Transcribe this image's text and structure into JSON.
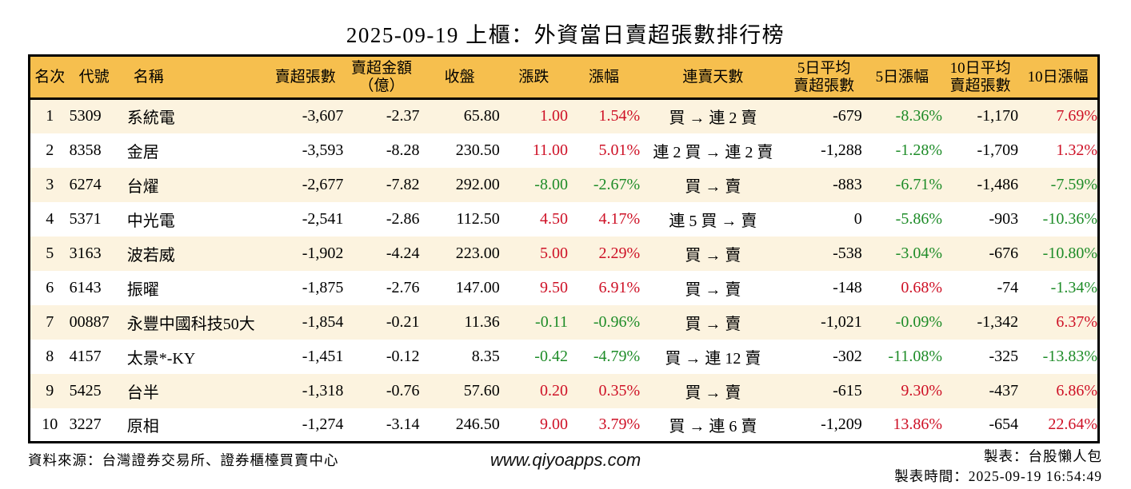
{
  "title": "2025-09-19 上櫃：外資當日賣超張數排行榜",
  "colors": {
    "up_red": "#CE1126",
    "down_green": "#1E8C28",
    "header_bg": "#F6BF4E",
    "row_stripe": "#FCF3DF",
    "border": "#000000"
  },
  "chart_data": {
    "type": "table",
    "title": "2025-09-19 上櫃：外資當日賣超張數排行榜",
    "columns": [
      {
        "key": "rank",
        "label": "名次"
      },
      {
        "key": "code",
        "label": "代號"
      },
      {
        "key": "name",
        "label": "名稱"
      },
      {
        "key": "sell_volume",
        "label": "賣超張數"
      },
      {
        "key": "sell_amount",
        "label": "賣超金額\n（億）"
      },
      {
        "key": "close",
        "label": "收盤"
      },
      {
        "key": "change",
        "label": "漲跌"
      },
      {
        "key": "change_pct",
        "label": "漲幅"
      },
      {
        "key": "streak",
        "label": "連賣天數"
      },
      {
        "key": "avg5_volume",
        "label": "5日平均\n賣超張數"
      },
      {
        "key": "pct5",
        "label": "5日漲幅"
      },
      {
        "key": "avg10_volume",
        "label": "10日平均\n賣超張數"
      },
      {
        "key": "pct10",
        "label": "10日漲幅"
      }
    ],
    "rows": [
      {
        "rank": "1",
        "code": "5309",
        "name": "系統電",
        "sell_volume": "-3,607",
        "sell_amount": "-2.37",
        "close": "65.80",
        "change": "1.00",
        "change_pct": "1.54%",
        "streak": "買 → 連 2 賣",
        "avg5_volume": "-679",
        "pct5": "-8.36%",
        "avg10_volume": "-1,170",
        "pct10": "7.69%"
      },
      {
        "rank": "2",
        "code": "8358",
        "name": "金居",
        "sell_volume": "-3,593",
        "sell_amount": "-8.28",
        "close": "230.50",
        "change": "11.00",
        "change_pct": "5.01%",
        "streak": "連 2 買 → 連 2 賣",
        "avg5_volume": "-1,288",
        "pct5": "-1.28%",
        "avg10_volume": "-1,709",
        "pct10": "1.32%"
      },
      {
        "rank": "3",
        "code": "6274",
        "name": "台燿",
        "sell_volume": "-2,677",
        "sell_amount": "-7.82",
        "close": "292.00",
        "change": "-8.00",
        "change_pct": "-2.67%",
        "streak": "買 → 賣",
        "avg5_volume": "-883",
        "pct5": "-6.71%",
        "avg10_volume": "-1,486",
        "pct10": "-7.59%"
      },
      {
        "rank": "4",
        "code": "5371",
        "name": "中光電",
        "sell_volume": "-2,541",
        "sell_amount": "-2.86",
        "close": "112.50",
        "change": "4.50",
        "change_pct": "4.17%",
        "streak": "連 5 買 → 賣",
        "avg5_volume": "0",
        "pct5": "-5.86%",
        "avg10_volume": "-903",
        "pct10": "-10.36%"
      },
      {
        "rank": "5",
        "code": "3163",
        "name": "波若威",
        "sell_volume": "-1,902",
        "sell_amount": "-4.24",
        "close": "223.00",
        "change": "5.00",
        "change_pct": "2.29%",
        "streak": "買 → 賣",
        "avg5_volume": "-538",
        "pct5": "-3.04%",
        "avg10_volume": "-676",
        "pct10": "-10.80%"
      },
      {
        "rank": "6",
        "code": "6143",
        "name": "振曜",
        "sell_volume": "-1,875",
        "sell_amount": "-2.76",
        "close": "147.00",
        "change": "9.50",
        "change_pct": "6.91%",
        "streak": "買 → 賣",
        "avg5_volume": "-148",
        "pct5": "0.68%",
        "avg10_volume": "-74",
        "pct10": "-1.34%"
      },
      {
        "rank": "7",
        "code": "00887",
        "name": "永豐中國科技50大",
        "sell_volume": "-1,854",
        "sell_amount": "-0.21",
        "close": "11.36",
        "change": "-0.11",
        "change_pct": "-0.96%",
        "streak": "買 → 賣",
        "avg5_volume": "-1,021",
        "pct5": "-0.09%",
        "avg10_volume": "-1,342",
        "pct10": "6.37%"
      },
      {
        "rank": "8",
        "code": "4157",
        "name": "太景*-KY",
        "sell_volume": "-1,451",
        "sell_amount": "-0.12",
        "close": "8.35",
        "change": "-0.42",
        "change_pct": "-4.79%",
        "streak": "買 → 連 12 賣",
        "avg5_volume": "-302",
        "pct5": "-11.08%",
        "avg10_volume": "-325",
        "pct10": "-13.83%"
      },
      {
        "rank": "9",
        "code": "5425",
        "name": "台半",
        "sell_volume": "-1,318",
        "sell_amount": "-0.76",
        "close": "57.60",
        "change": "0.20",
        "change_pct": "0.35%",
        "streak": "買 → 賣",
        "avg5_volume": "-615",
        "pct5": "9.30%",
        "avg10_volume": "-437",
        "pct10": "6.86%"
      },
      {
        "rank": "10",
        "code": "3227",
        "name": "原相",
        "sell_volume": "-1,274",
        "sell_amount": "-3.14",
        "close": "246.50",
        "change": "9.00",
        "change_pct": "3.79%",
        "streak": "買 → 連 6 賣",
        "avg5_volume": "-1,209",
        "pct5": "13.86%",
        "avg10_volume": "-654",
        "pct10": "22.64%"
      }
    ]
  },
  "footer": {
    "source": "資料來源：台灣證券交易所、證券櫃檯買賣中心",
    "website": "www.qiyoapps.com",
    "maker": "製表：台股懶人包",
    "made_at": "製表時間：2025-09-19 16:54:49"
  }
}
